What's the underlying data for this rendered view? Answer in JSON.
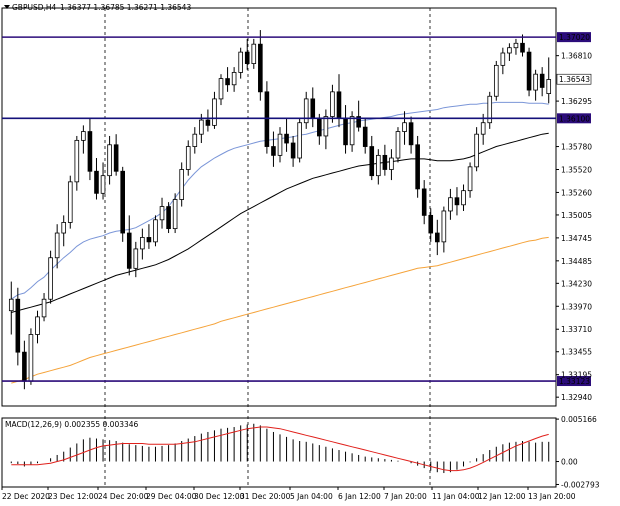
{
  "chart_data": {
    "type": "candlestick",
    "header": {
      "symbol_label": "GBPUSD,H4",
      "ohlc_text": "1.36377 1.36785 1.36271 1.36543"
    },
    "price_axis": {
      "ylim": [
        1.3284,
        1.3735
      ],
      "ticks": [
        "1.36810",
        "1.36295",
        "1.35780",
        "1.35520",
        "1.35260",
        "1.35005",
        "1.34745",
        "1.34485",
        "1.34230",
        "1.33970",
        "1.33710",
        "1.33455",
        "1.33195",
        "1.32940"
      ],
      "tick_values": [
        1.3681,
        1.36295,
        1.3578,
        1.3552,
        1.3526,
        1.35005,
        1.34745,
        1.34485,
        1.3423,
        1.3397,
        1.3371,
        1.33455,
        1.33195,
        1.3294
      ]
    },
    "levels": [
      {
        "value": 1.3702,
        "label": "1.37020",
        "color": "#2b0c7a",
        "labels": [
          "1.37020",
          "1.37025"
        ]
      },
      {
        "value": 1.361,
        "label": "1.36100",
        "color": "#14117a",
        "labels": [
          "1.36100",
          "1.36035"
        ]
      },
      {
        "value": 1.33123,
        "label": "1.33123",
        "color": "#2b0c7a"
      }
    ],
    "x_labels": [
      "22 Dec 2020",
      "23 Dec 12:00",
      "24 Dec 20:00",
      "29 Dec 04:00",
      "30 Dec 12:00",
      "31 Dec 20:00",
      "5 Jan 04:00",
      "6 Jan 12:00",
      "7 Jan 20:00",
      "11 Jan 04:00",
      "12 Jan 12:00",
      "13 Jan 20:00"
    ],
    "ohlc": [
      [
        1.3392,
        1.3425,
        1.3365,
        1.3405
      ],
      [
        1.3405,
        1.3418,
        1.333,
        1.3345
      ],
      [
        1.3345,
        1.3358,
        1.3303,
        1.3312
      ],
      [
        1.3312,
        1.3372,
        1.3308,
        1.3365
      ],
      [
        1.3365,
        1.3392,
        1.3355,
        1.3385
      ],
      [
        1.3385,
        1.3412,
        1.338,
        1.3405
      ],
      [
        1.3405,
        1.346,
        1.34,
        1.3452
      ],
      [
        1.3452,
        1.349,
        1.344,
        1.348
      ],
      [
        1.348,
        1.35,
        1.3465,
        1.3492
      ],
      [
        1.3492,
        1.3545,
        1.3485,
        1.3538
      ],
      [
        1.3538,
        1.359,
        1.3528,
        1.3585
      ],
      [
        1.3585,
        1.3602,
        1.357,
        1.3595
      ],
      [
        1.3595,
        1.361,
        1.354,
        1.355
      ],
      [
        1.355,
        1.3565,
        1.3518,
        1.3525
      ],
      [
        1.3525,
        1.356,
        1.3518,
        1.3545
      ],
      [
        1.3545,
        1.359,
        1.3535,
        1.358
      ],
      [
        1.358,
        1.3592,
        1.3545,
        1.355
      ],
      [
        1.355,
        1.3555,
        1.347,
        1.348
      ],
      [
        1.348,
        1.35,
        1.3432,
        1.344
      ],
      [
        1.344,
        1.347,
        1.343,
        1.3462
      ],
      [
        1.3462,
        1.3485,
        1.345,
        1.3475
      ],
      [
        1.3475,
        1.349,
        1.3462,
        1.347
      ],
      [
        1.347,
        1.35,
        1.3465,
        1.3495
      ],
      [
        1.3495,
        1.352,
        1.3485,
        1.351
      ],
      [
        1.351,
        1.3515,
        1.348,
        1.3485
      ],
      [
        1.3485,
        1.3525,
        1.348,
        1.3518
      ],
      [
        1.3518,
        1.356,
        1.351,
        1.3552
      ],
      [
        1.3552,
        1.3585,
        1.3545,
        1.3578
      ],
      [
        1.3578,
        1.36,
        1.357,
        1.3592
      ],
      [
        1.3592,
        1.3615,
        1.3582,
        1.3608
      ],
      [
        1.3608,
        1.362,
        1.3595,
        1.3602
      ],
      [
        1.3602,
        1.364,
        1.3598,
        1.3632
      ],
      [
        1.3632,
        1.366,
        1.3625,
        1.3655
      ],
      [
        1.3655,
        1.3668,
        1.364,
        1.3648
      ],
      [
        1.3648,
        1.3668,
        1.364,
        1.3662
      ],
      [
        1.3662,
        1.369,
        1.3655,
        1.3685
      ],
      [
        1.3685,
        1.37,
        1.3665,
        1.3672
      ],
      [
        1.3672,
        1.37,
        1.3666,
        1.3694
      ],
      [
        1.3694,
        1.371,
        1.363,
        1.364
      ],
      [
        1.364,
        1.3652,
        1.357,
        1.3578
      ],
      [
        1.3578,
        1.3595,
        1.3555,
        1.3568
      ],
      [
        1.3568,
        1.36,
        1.356,
        1.3592
      ],
      [
        1.3592,
        1.361,
        1.3572,
        1.3582
      ],
      [
        1.3582,
        1.359,
        1.3555,
        1.3565
      ],
      [
        1.3565,
        1.361,
        1.356,
        1.3605
      ],
      [
        1.3605,
        1.364,
        1.3598,
        1.3632
      ],
      [
        1.3632,
        1.3645,
        1.36,
        1.361
      ],
      [
        1.361,
        1.3615,
        1.358,
        1.359
      ],
      [
        1.359,
        1.362,
        1.3575,
        1.3612
      ],
      [
        1.3612,
        1.3648,
        1.3605,
        1.364
      ],
      [
        1.364,
        1.366,
        1.36,
        1.361
      ],
      [
        1.361,
        1.3625,
        1.357,
        1.358
      ],
      [
        1.358,
        1.3618,
        1.3572,
        1.3612
      ],
      [
        1.3612,
        1.363,
        1.3595,
        1.36
      ],
      [
        1.36,
        1.361,
        1.357,
        1.3578
      ],
      [
        1.3578,
        1.359,
        1.354,
        1.3545
      ],
      [
        1.3545,
        1.3575,
        1.3535,
        1.3568
      ],
      [
        1.3568,
        1.358,
        1.3545,
        1.3552
      ],
      [
        1.3552,
        1.3575,
        1.354,
        1.3565
      ],
      [
        1.3565,
        1.36,
        1.356,
        1.3595
      ],
      [
        1.3595,
        1.3618,
        1.358,
        1.3605
      ],
      [
        1.3605,
        1.3612,
        1.357,
        1.358
      ],
      [
        1.358,
        1.359,
        1.352,
        1.353
      ],
      [
        1.353,
        1.354,
        1.349,
        1.35
      ],
      [
        1.35,
        1.3508,
        1.347,
        1.348
      ],
      [
        1.348,
        1.3495,
        1.3455,
        1.347
      ],
      [
        1.347,
        1.351,
        1.3458,
        1.3505
      ],
      [
        1.3505,
        1.353,
        1.3495,
        1.352
      ],
      [
        1.352,
        1.3532,
        1.35,
        1.3512
      ],
      [
        1.3512,
        1.3535,
        1.3505,
        1.3528
      ],
      [
        1.3528,
        1.356,
        1.352,
        1.3555
      ],
      [
        1.3555,
        1.36,
        1.355,
        1.3592
      ],
      [
        1.3592,
        1.3615,
        1.358,
        1.3605
      ],
      [
        1.3605,
        1.364,
        1.3598,
        1.3635
      ],
      [
        1.3635,
        1.3675,
        1.363,
        1.367
      ],
      [
        1.367,
        1.369,
        1.366,
        1.3684
      ],
      [
        1.3684,
        1.3695,
        1.3675,
        1.369
      ],
      [
        1.369,
        1.37,
        1.3682,
        1.3695
      ],
      [
        1.3695,
        1.3705,
        1.368,
        1.3685
      ],
      [
        1.3685,
        1.369,
        1.3635,
        1.3642
      ],
      [
        1.3642,
        1.3665,
        1.363,
        1.366
      ],
      [
        1.366,
        1.3668,
        1.3635,
        1.3645
      ],
      [
        1.3638,
        1.3679,
        1.3627,
        1.3654
      ]
    ],
    "moving_averages": [
      {
        "period": 50,
        "color": "#7b96d8",
        "values": [
          1.3405,
          1.341,
          1.3412,
          1.3418,
          1.3425,
          1.343,
          1.3438,
          1.3445,
          1.3452,
          1.3458,
          1.3465,
          1.347,
          1.3473,
          1.3475,
          1.3477,
          1.348,
          1.3482,
          1.3483,
          1.3484,
          1.3486,
          1.349,
          1.3494,
          1.3498,
          1.3503,
          1.351,
          1.352,
          1.353,
          1.354,
          1.3548,
          1.3555,
          1.356,
          1.3565,
          1.3569,
          1.3573,
          1.3576,
          1.3578,
          1.358,
          1.3582,
          1.3584,
          1.3585,
          1.3586,
          1.3587,
          1.3588,
          1.3589,
          1.3591,
          1.3592,
          1.3594,
          1.3596,
          1.3598,
          1.36,
          1.3602,
          1.3604,
          1.3605,
          1.3607,
          1.3608,
          1.3609,
          1.361,
          1.3611,
          1.3612,
          1.3614,
          1.3615,
          1.3616,
          1.3617,
          1.3618,
          1.3619,
          1.362,
          1.3622,
          1.3623,
          1.3624,
          1.3625,
          1.3626,
          1.3626,
          1.3627,
          1.3627,
          1.3628,
          1.3628,
          1.3628,
          1.3628,
          1.3628,
          1.3627,
          1.3627,
          1.3627,
          1.3626
        ]
      },
      {
        "period": 100,
        "color": "#000000",
        "values": [
          1.339,
          1.3392,
          1.3394,
          1.3396,
          1.3398,
          1.34,
          1.3402,
          1.3405,
          1.3408,
          1.3411,
          1.3414,
          1.3417,
          1.342,
          1.3423,
          1.3426,
          1.3429,
          1.3432,
          1.3434,
          1.3436,
          1.3438,
          1.344,
          1.3442,
          1.3444,
          1.3447,
          1.345,
          1.3454,
          1.3458,
          1.3462,
          1.3467,
          1.3472,
          1.3477,
          1.3482,
          1.3487,
          1.3492,
          1.3497,
          1.3502,
          1.3506,
          1.351,
          1.3514,
          1.3518,
          1.3522,
          1.3526,
          1.353,
          1.3533,
          1.3536,
          1.3539,
          1.3542,
          1.3544,
          1.3546,
          1.3548,
          1.355,
          1.3552,
          1.3554,
          1.3556,
          1.3557,
          1.3558,
          1.3559,
          1.356,
          1.3561,
          1.3562,
          1.3563,
          1.3564,
          1.3564,
          1.3564,
          1.3563,
          1.3562,
          1.3562,
          1.3562,
          1.3563,
          1.3564,
          1.3566,
          1.3569,
          1.3572,
          1.3575,
          1.3578,
          1.358,
          1.3582,
          1.3584,
          1.3586,
          1.3588,
          1.359,
          1.3592,
          1.3593
        ]
      },
      {
        "period": 200,
        "color": "#f5a33a",
        "values": [
          1.331,
          1.3312,
          1.3314,
          1.3317,
          1.332,
          1.3322,
          1.3324,
          1.3326,
          1.3328,
          1.333,
          1.3333,
          1.3336,
          1.3339,
          1.3341,
          1.3343,
          1.3345,
          1.3347,
          1.3349,
          1.3351,
          1.3353,
          1.3355,
          1.3357,
          1.3359,
          1.3361,
          1.3363,
          1.3365,
          1.3367,
          1.3369,
          1.3371,
          1.3373,
          1.3375,
          1.3377,
          1.338,
          1.3382,
          1.3384,
          1.3386,
          1.3388,
          1.339,
          1.3392,
          1.3394,
          1.3396,
          1.3398,
          1.34,
          1.3402,
          1.3404,
          1.3406,
          1.3408,
          1.341,
          1.3412,
          1.3414,
          1.3416,
          1.3418,
          1.342,
          1.3422,
          1.3424,
          1.3426,
          1.3428,
          1.343,
          1.3432,
          1.3434,
          1.3436,
          1.3438,
          1.344,
          1.3441,
          1.3442,
          1.3443,
          1.3445,
          1.3447,
          1.3449,
          1.3451,
          1.3453,
          1.3455,
          1.3457,
          1.3459,
          1.3461,
          1.3463,
          1.3465,
          1.3467,
          1.3469,
          1.3471,
          1.3472,
          1.3474,
          1.3475
        ]
      }
    ],
    "macd": {
      "label": "MACD(12,26,9) 0.002355 0.003346",
      "ylim": [
        -0.0031,
        0.0053
      ],
      "ticks": [
        "0.005166",
        "0.00",
        "-0.002793"
      ],
      "tick_values": [
        0.005166,
        0.0,
        -0.002793
      ],
      "histogram": [
        -0.0002,
        -0.0003,
        -0.0006,
        -0.0004,
        -0.0002,
        0.0,
        0.0004,
        0.0008,
        0.0012,
        0.0017,
        0.0022,
        0.0027,
        0.0029,
        0.0028,
        0.0027,
        0.0026,
        0.0025,
        0.0023,
        0.0021,
        0.002,
        0.0019,
        0.0018,
        0.0018,
        0.0019,
        0.002,
        0.0022,
        0.0025,
        0.0028,
        0.0031,
        0.0034,
        0.0036,
        0.0038,
        0.004,
        0.0041,
        0.0042,
        0.0044,
        0.0045,
        0.0046,
        0.0044,
        0.004,
        0.0036,
        0.0033,
        0.003,
        0.0027,
        0.0025,
        0.0024,
        0.0022,
        0.002,
        0.0018,
        0.0016,
        0.0014,
        0.0012,
        0.001,
        0.0008,
        0.0006,
        0.0005,
        0.0004,
        0.0003,
        0.0002,
        0.0001,
        0.0,
        -0.0002,
        -0.0005,
        -0.0008,
        -0.0011,
        -0.0013,
        -0.0014,
        -0.0013,
        -0.001,
        -0.0006,
        -0.0001,
        0.0004,
        0.0009,
        0.0014,
        0.0018,
        0.0021,
        0.0023,
        0.0024,
        0.0025,
        0.0024,
        0.0023,
        0.0024,
        0.0024
      ],
      "signal": [
        -0.0004,
        -0.0004,
        -0.0004,
        -0.0004,
        -0.0004,
        -0.0003,
        -0.0002,
        0.0,
        0.0002,
        0.0005,
        0.0008,
        0.0011,
        0.0014,
        0.0017,
        0.0019,
        0.002,
        0.0021,
        0.0022,
        0.0022,
        0.0022,
        0.0022,
        0.0021,
        0.0021,
        0.0021,
        0.0021,
        0.0021,
        0.0022,
        0.0023,
        0.0024,
        0.0026,
        0.0028,
        0.003,
        0.0032,
        0.0034,
        0.0036,
        0.0038,
        0.004,
        0.0041,
        0.0042,
        0.0042,
        0.0041,
        0.004,
        0.0038,
        0.0036,
        0.0034,
        0.0032,
        0.003,
        0.0028,
        0.0026,
        0.0024,
        0.0022,
        0.002,
        0.0018,
        0.0016,
        0.0014,
        0.0012,
        0.001,
        0.0008,
        0.0006,
        0.0004,
        0.0002,
        0.0,
        -0.0002,
        -0.0004,
        -0.0006,
        -0.0008,
        -0.001,
        -0.0011,
        -0.0011,
        -0.001,
        -0.0008,
        -0.0005,
        -0.0001,
        0.0003,
        0.0007,
        0.0011,
        0.0015,
        0.0019,
        0.0022,
        0.0025,
        0.0028,
        0.0031,
        0.0033
      ]
    }
  },
  "colors": {
    "bull_body": "#ffffff",
    "bear_body": "#000000",
    "candle_outline": "#000000",
    "grid_v": "#000000",
    "signal": "#e0201b",
    "hist": "#000000",
    "level_label_bg": "#2b0c7a",
    "current_price_bg": "#ffffff"
  },
  "current_price": {
    "value": 1.36543,
    "label": "1.36543"
  },
  "icons": {
    "header": "triangle-down-icon"
  }
}
